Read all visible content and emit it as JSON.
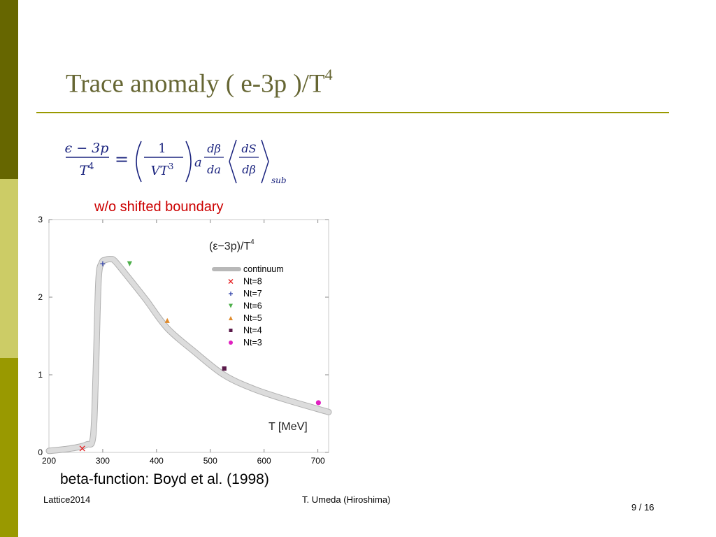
{
  "slide": {
    "title_main": "Trace anomaly  ( e-3p )/T",
    "title_sup": "4",
    "plot_caption": "w/o shifted boundary",
    "bottom_caption": "beta-function: Boyd et al. (1998)",
    "footer_left": "Lattice2014",
    "footer_center": "T. Umeda (Hiroshima)",
    "page_number": "9 / 16"
  },
  "formula": {
    "lhs_numerator": "ϵ − 3p",
    "lhs_denominator": "T",
    "lhs_denominator_sup": "4",
    "equals": "=",
    "frac_numerator": "1",
    "frac_denominator": "VT",
    "frac_denominator_sup": "3",
    "a": "a",
    "dbeta_num": "dβ",
    "dbeta_den": "da",
    "dS_num": "dS",
    "dS_den": "dβ",
    "subscript": "sub"
  },
  "colors": {
    "band_dark": "#666600",
    "band_light": "#cccc66",
    "band_mid": "#999900",
    "title": "#666633",
    "rule": "#999900",
    "caption_red": "#cc0000",
    "formula_blue": "#1a237e"
  },
  "chart_data": {
    "type": "line",
    "title": "(ε−3p)/T",
    "title_sup": "4",
    "xlabel": "T [MeV]",
    "ylabel": "",
    "xlim": [
      200,
      720
    ],
    "ylim": [
      0,
      3
    ],
    "x_ticks": [
      200,
      300,
      400,
      500,
      600,
      700
    ],
    "y_ticks": [
      0,
      1,
      2,
      3
    ],
    "grid": false,
    "legend_position": "top-right",
    "series": [
      {
        "name": "continuum",
        "kind": "band",
        "color": "#c8c8c8",
        "x": [
          200,
          240,
          270,
          282,
          287,
          292,
          298,
          305,
          315,
          322,
          340,
          380,
          420,
          470,
          525,
          580,
          640,
          720
        ],
        "y": [
          0.02,
          0.05,
          0.1,
          0.2,
          1.0,
          2.2,
          2.44,
          2.48,
          2.49,
          2.47,
          2.32,
          1.97,
          1.6,
          1.3,
          1.0,
          0.82,
          0.68,
          0.52
        ]
      },
      {
        "name": "Nt=8",
        "kind": "marker",
        "symbol": "x",
        "color": "#e41a1c",
        "x": [
          262
        ],
        "y": [
          0.05
        ]
      },
      {
        "name": "Nt=7",
        "kind": "marker",
        "symbol": "plus",
        "color": "#3344aa",
        "x": [
          300
        ],
        "y": [
          2.43
        ]
      },
      {
        "name": "Nt=6",
        "kind": "marker",
        "symbol": "triangle-down",
        "color": "#4daf4a",
        "x": [
          350
        ],
        "y": [
          2.43
        ]
      },
      {
        "name": "Nt=5",
        "kind": "marker",
        "symbol": "triangle-up",
        "color": "#e08a2a",
        "x": [
          420
        ],
        "y": [
          1.7
        ]
      },
      {
        "name": "Nt=4",
        "kind": "marker",
        "symbol": "square",
        "color": "#5a1a4a",
        "x": [
          526
        ],
        "y": [
          1.08
        ]
      },
      {
        "name": "Nt=3",
        "kind": "marker",
        "symbol": "circle",
        "color": "#e020c0",
        "x": [
          701
        ],
        "y": [
          0.64
        ]
      }
    ]
  }
}
